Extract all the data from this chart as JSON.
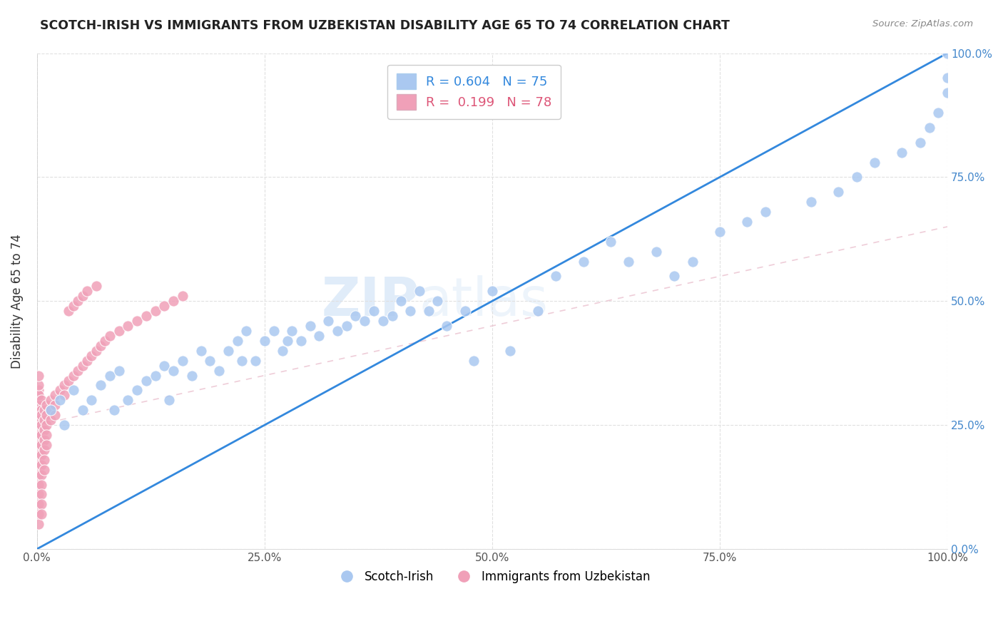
{
  "title": "SCOTCH-IRISH VS IMMIGRANTS FROM UZBEKISTAN DISABILITY AGE 65 TO 74 CORRELATION CHART",
  "source": "Source: ZipAtlas.com",
  "ylabel": "Disability Age 65 to 74",
  "ytick_values": [
    0,
    25,
    50,
    75,
    100
  ],
  "xtick_values": [
    0,
    25,
    50,
    75,
    100
  ],
  "legend_blue_R": "0.604",
  "legend_blue_N": "75",
  "legend_pink_R": "0.199",
  "legend_pink_N": "78",
  "blue_color": "#aac8f0",
  "pink_color": "#f0a0b8",
  "blue_line_color": "#3388dd",
  "pink_line_color": "#e8b8c8",
  "watermark_ZIP": "ZIP",
  "watermark_atlas": "atlas",
  "background_color": "#ffffff",
  "grid_color": "#e0e0e0",
  "blue_scatter_x": [
    1.5,
    2.5,
    3.0,
    4.0,
    5.0,
    6.0,
    7.0,
    8.0,
    8.5,
    9.0,
    10.0,
    11.0,
    12.0,
    13.0,
    14.0,
    14.5,
    15.0,
    16.0,
    17.0,
    18.0,
    19.0,
    20.0,
    21.0,
    22.0,
    22.5,
    23.0,
    24.0,
    25.0,
    26.0,
    27.0,
    27.5,
    28.0,
    29.0,
    30.0,
    31.0,
    32.0,
    33.0,
    34.0,
    35.0,
    36.0,
    37.0,
    38.0,
    39.0,
    40.0,
    41.0,
    42.0,
    43.0,
    44.0,
    45.0,
    47.0,
    48.0,
    50.0,
    52.0,
    55.0,
    57.0,
    60.0,
    63.0,
    65.0,
    68.0,
    70.0,
    72.0,
    75.0,
    78.0,
    80.0,
    85.0,
    88.0,
    90.0,
    92.0,
    95.0,
    97.0,
    98.0,
    99.0,
    100.0,
    100.0,
    100.0
  ],
  "blue_scatter_y": [
    28.0,
    30.0,
    25.0,
    32.0,
    28.0,
    30.0,
    33.0,
    35.0,
    28.0,
    36.0,
    30.0,
    32.0,
    34.0,
    35.0,
    37.0,
    30.0,
    36.0,
    38.0,
    35.0,
    40.0,
    38.0,
    36.0,
    40.0,
    42.0,
    38.0,
    44.0,
    38.0,
    42.0,
    44.0,
    40.0,
    42.0,
    44.0,
    42.0,
    45.0,
    43.0,
    46.0,
    44.0,
    45.0,
    47.0,
    46.0,
    48.0,
    46.0,
    47.0,
    50.0,
    48.0,
    52.0,
    48.0,
    50.0,
    45.0,
    48.0,
    38.0,
    52.0,
    40.0,
    48.0,
    55.0,
    58.0,
    62.0,
    58.0,
    60.0,
    55.0,
    58.0,
    64.0,
    66.0,
    68.0,
    70.0,
    72.0,
    75.0,
    78.0,
    80.0,
    82.0,
    85.0,
    88.0,
    92.0,
    95.0,
    100.0
  ],
  "pink_scatter_x": [
    0.2,
    0.2,
    0.2,
    0.2,
    0.2,
    0.2,
    0.2,
    0.2,
    0.2,
    0.2,
    0.2,
    0.2,
    0.2,
    0.2,
    0.2,
    0.2,
    0.2,
    0.2,
    0.2,
    0.2,
    0.5,
    0.5,
    0.5,
    0.5,
    0.5,
    0.5,
    0.5,
    0.5,
    0.5,
    0.5,
    0.5,
    0.5,
    0.5,
    0.8,
    0.8,
    0.8,
    0.8,
    0.8,
    0.8,
    0.8,
    1.0,
    1.0,
    1.0,
    1.0,
    1.0,
    1.5,
    1.5,
    1.5,
    2.0,
    2.0,
    2.0,
    2.5,
    3.0,
    3.0,
    3.5,
    4.0,
    4.5,
    5.0,
    5.5,
    6.0,
    6.5,
    7.0,
    7.5,
    8.0,
    9.0,
    10.0,
    11.0,
    12.0,
    13.0,
    14.0,
    15.0,
    16.0,
    3.5,
    4.0,
    4.5,
    5.0,
    5.5,
    6.5
  ],
  "pink_scatter_y": [
    28.0,
    30.0,
    27.0,
    32.0,
    29.0,
    26.0,
    24.0,
    31.0,
    33.0,
    23.0,
    21.0,
    35.0,
    19.0,
    17.0,
    15.0,
    13.0,
    11.0,
    9.0,
    7.0,
    5.0,
    28.0,
    30.0,
    27.0,
    25.0,
    23.0,
    21.0,
    19.0,
    17.0,
    15.0,
    13.0,
    11.0,
    9.0,
    7.0,
    28.0,
    26.0,
    24.0,
    22.0,
    20.0,
    18.0,
    16.0,
    29.0,
    27.0,
    25.0,
    23.0,
    21.0,
    30.0,
    28.0,
    26.0,
    31.0,
    29.0,
    27.0,
    32.0,
    33.0,
    31.0,
    34.0,
    35.0,
    36.0,
    37.0,
    38.0,
    39.0,
    40.0,
    41.0,
    42.0,
    43.0,
    44.0,
    45.0,
    46.0,
    47.0,
    48.0,
    49.0,
    50.0,
    51.0,
    48.0,
    49.0,
    50.0,
    51.0,
    52.0,
    53.0
  ]
}
